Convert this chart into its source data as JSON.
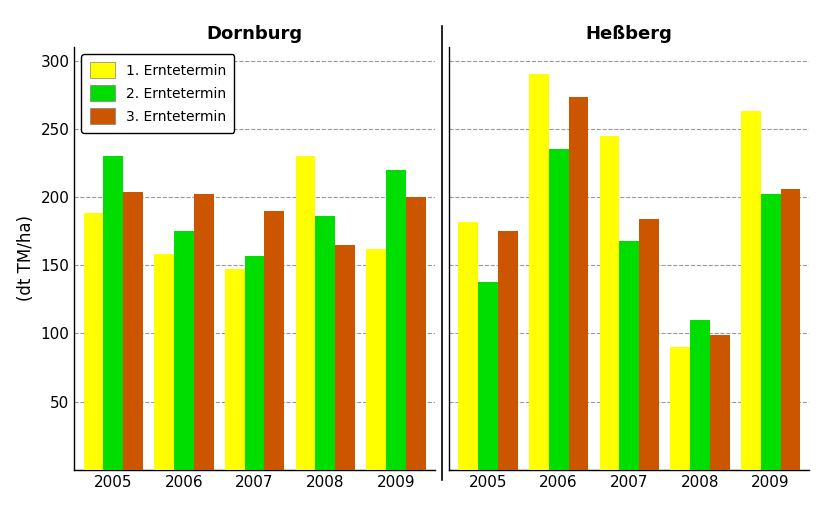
{
  "dornburg": {
    "years": [
      2005,
      2006,
      2007,
      2008,
      2009
    ],
    "ernte1": [
      188,
      158,
      147,
      230,
      162
    ],
    "ernte2": [
      230,
      175,
      157,
      186,
      220
    ],
    "ernte3": [
      204,
      202,
      190,
      165,
      200
    ]
  },
  "hessberg": {
    "years": [
      2005,
      2006,
      2007,
      2008,
      2009
    ],
    "ernte1": [
      182,
      290,
      245,
      90,
      263
    ],
    "ernte2": [
      138,
      235,
      168,
      110,
      202
    ],
    "ernte3": [
      175,
      273,
      184,
      99,
      206
    ]
  },
  "colors": {
    "ernte1": "#FFFF00",
    "ernte2": "#00DD00",
    "ernte3": "#CC5500"
  },
  "legend_labels": [
    "1. Erntetermin",
    "2. Erntetermin",
    "3. Erntetermin"
  ],
  "ylabel": "(dt TM/ha)",
  "title_left": "Dornburg",
  "title_right": "Heßberg",
  "ylim": [
    0,
    310
  ],
  "yticks": [
    0,
    50,
    100,
    150,
    200,
    250,
    300
  ],
  "bar_width": 0.28,
  "background_color": "#FFFFFF",
  "grid_color": "#999999"
}
